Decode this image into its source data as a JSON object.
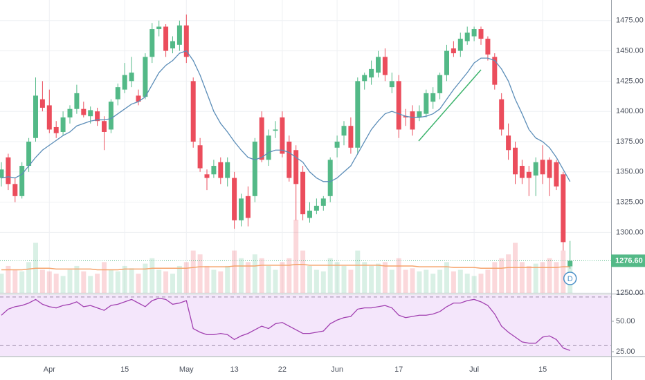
{
  "chart_data": {
    "type": "candlestick",
    "categories": [
      null,
      null,
      null,
      null,
      null,
      null,
      null,
      "Apr",
      null,
      null,
      null,
      null,
      null,
      null,
      null,
      null,
      null,
      null,
      "15",
      null,
      null,
      null,
      null,
      null,
      null,
      null,
      null,
      "May",
      null,
      null,
      null,
      null,
      null,
      null,
      "13",
      null,
      null,
      null,
      null,
      null,
      null,
      "22",
      null,
      null,
      null,
      null,
      null,
      null,
      null,
      "Jun",
      null,
      null,
      null,
      null,
      null,
      null,
      null,
      null,
      "17",
      null,
      null,
      null,
      null,
      null,
      null,
      null,
      null,
      null,
      null,
      "Jul",
      null,
      null,
      null,
      null,
      null,
      null,
      null,
      null,
      null,
      "15",
      null,
      null,
      null,
      null
    ],
    "ohlc": [
      [
        1345,
        1358,
        1338,
        1352
      ],
      [
        1362,
        1365,
        1335,
        1340
      ],
      [
        1340,
        1345,
        1325,
        1330
      ],
      [
        1330,
        1358,
        1328,
        1355
      ],
      [
        1355,
        1378,
        1350,
        1375
      ],
      [
        1378,
        1428,
        1375,
        1413
      ],
      [
        1410,
        1425,
        1400,
        1403
      ],
      [
        1405,
        1418,
        1382,
        1385
      ],
      [
        1387,
        1392,
        1378,
        1382
      ],
      [
        1383,
        1400,
        1380,
        1395
      ],
      [
        1395,
        1405,
        1390,
        1402
      ],
      [
        1402,
        1422,
        1398,
        1415
      ],
      [
        1402,
        1408,
        1395,
        1397
      ],
      [
        1396,
        1404,
        1390,
        1401
      ],
      [
        1400,
        1403,
        1388,
        1392
      ],
      [
        1392,
        1396,
        1368,
        1383
      ],
      [
        1385,
        1410,
        1382,
        1408
      ],
      [
        1410,
        1423,
        1405,
        1420
      ],
      [
        1418,
        1440,
        1415,
        1430
      ],
      [
        1425,
        1445,
        1420,
        1432
      ],
      [
        1413,
        1418,
        1405,
        1408
      ],
      [
        1412,
        1448,
        1410,
        1445
      ],
      [
        1445,
        1473,
        1440,
        1468
      ],
      [
        1468,
        1475,
        1462,
        1470
      ],
      [
        1470,
        1472,
        1445,
        1450
      ],
      [
        1452,
        1462,
        1448,
        1458
      ],
      [
        1455,
        1475,
        1450,
        1471
      ],
      [
        1471,
        1480,
        1440,
        1445
      ],
      [
        1425,
        1428,
        1370,
        1375
      ],
      [
        1372,
        1378,
        1350,
        1353
      ],
      [
        1348,
        1352,
        1335,
        1345
      ],
      [
        1348,
        1360,
        1345,
        1355
      ],
      [
        1358,
        1362,
        1340,
        1345
      ],
      [
        1345,
        1362,
        1338,
        1358
      ],
      [
        1345,
        1350,
        1303,
        1310
      ],
      [
        1310,
        1332,
        1305,
        1328
      ],
      [
        1330,
        1338,
        1305,
        1312
      ],
      [
        1330,
        1378,
        1325,
        1375
      ],
      [
        1395,
        1400,
        1358,
        1360
      ],
      [
        1360,
        1385,
        1355,
        1380
      ],
      [
        1384,
        1392,
        1378,
        1385
      ],
      [
        1395,
        1400,
        1362,
        1365
      ],
      [
        1375,
        1380,
        1342,
        1345
      ],
      [
        1368,
        1372,
        1310,
        1340
      ],
      [
        1350,
        1355,
        1310,
        1315
      ],
      [
        1312,
        1325,
        1308,
        1318
      ],
      [
        1318,
        1328,
        1315,
        1322
      ],
      [
        1322,
        1330,
        1318,
        1328
      ],
      [
        1330,
        1362,
        1325,
        1360
      ],
      [
        1370,
        1380,
        1362,
        1375
      ],
      [
        1380,
        1392,
        1372,
        1388
      ],
      [
        1388,
        1395,
        1365,
        1370
      ],
      [
        1370,
        1428,
        1365,
        1425
      ],
      [
        1425,
        1432,
        1418,
        1430
      ],
      [
        1428,
        1442,
        1422,
        1435
      ],
      [
        1432,
        1450,
        1428,
        1445
      ],
      [
        1445,
        1452,
        1425,
        1430
      ],
      [
        1420,
        1432,
        1415,
        1425
      ],
      [
        1425,
        1430,
        1378,
        1385
      ],
      [
        1396,
        1402,
        1388,
        1395
      ],
      [
        1400,
        1405,
        1380,
        1385
      ],
      [
        1395,
        1405,
        1392,
        1400
      ],
      [
        1398,
        1418,
        1395,
        1415
      ],
      [
        1408,
        1420,
        1402,
        1415
      ],
      [
        1415,
        1432,
        1410,
        1430
      ],
      [
        1430,
        1455,
        1425,
        1450
      ],
      [
        1452,
        1458,
        1445,
        1448
      ],
      [
        1450,
        1465,
        1445,
        1460
      ],
      [
        1458,
        1470,
        1455,
        1465
      ],
      [
        1462,
        1470,
        1458,
        1468
      ],
      [
        1468,
        1470,
        1455,
        1460
      ],
      [
        1460,
        1462,
        1442,
        1447
      ],
      [
        1445,
        1448,
        1418,
        1422
      ],
      [
        1410,
        1415,
        1380,
        1385
      ],
      [
        1380,
        1390,
        1360,
        1368
      ],
      [
        1370,
        1375,
        1340,
        1348
      ],
      [
        1355,
        1360,
        1340,
        1345
      ],
      [
        1350,
        1355,
        1330,
        1345
      ],
      [
        1347,
        1362,
        1330,
        1358
      ],
      [
        1360,
        1372,
        1340,
        1348
      ],
      [
        1360,
        1362,
        1330,
        1345
      ],
      [
        1358,
        1360,
        1335,
        1338
      ],
      [
        1348,
        1350,
        1285,
        1292
      ],
      [
        1272,
        1293,
        1270,
        1276.6
      ]
    ],
    "ma": [
      1345,
      1346,
      1345,
      1348,
      1355,
      1362,
      1368,
      1372,
      1376,
      1380,
      1383,
      1388,
      1390,
      1392,
      1393,
      1393,
      1394,
      1398,
      1402,
      1406,
      1408,
      1412,
      1422,
      1432,
      1438,
      1442,
      1448,
      1450,
      1442,
      1430,
      1415,
      1400,
      1390,
      1383,
      1375,
      1368,
      1362,
      1360,
      1362,
      1366,
      1368,
      1368,
      1366,
      1362,
      1358,
      1350,
      1345,
      1342,
      1342,
      1345,
      1350,
      1355,
      1365,
      1375,
      1385,
      1392,
      1398,
      1400,
      1398,
      1396,
      1395,
      1395,
      1396,
      1398,
      1402,
      1410,
      1418,
      1425,
      1432,
      1440,
      1444,
      1444,
      1442,
      1435,
      1425,
      1410,
      1398,
      1385,
      1378,
      1375,
      1370,
      1362,
      1352,
      1342
    ],
    "volume": [
      25,
      35,
      30,
      28,
      40,
      65,
      30,
      28,
      25,
      22,
      30,
      35,
      28,
      22,
      25,
      40,
      30,
      28,
      35,
      32,
      25,
      38,
      45,
      30,
      28,
      25,
      35,
      40,
      55,
      50,
      35,
      30,
      28,
      35,
      55,
      45,
      40,
      50,
      45,
      35,
      30,
      40,
      45,
      95,
      55,
      35,
      30,
      28,
      45,
      40,
      35,
      30,
      55,
      40,
      35,
      38,
      40,
      30,
      45,
      30,
      32,
      28,
      30,
      25,
      30,
      40,
      28,
      30,
      25,
      22,
      25,
      30,
      40,
      45,
      50,
      65,
      40,
      35,
      38,
      40,
      45,
      40,
      55,
      40
    ],
    "volume_ma": [
      30,
      30,
      30,
      30,
      31,
      32,
      32,
      32,
      31,
      31,
      31,
      31,
      31,
      31,
      30,
      30,
      30,
      30,
      31,
      31,
      31,
      31,
      32,
      32,
      32,
      32,
      32,
      32,
      33,
      34,
      34,
      34,
      34,
      34,
      35,
      35,
      35,
      35,
      36,
      36,
      36,
      36,
      36,
      37,
      37,
      36,
      36,
      36,
      36,
      36,
      36,
      36,
      36,
      36,
      36,
      36,
      35,
      35,
      35,
      35,
      35,
      34,
      34,
      34,
      34,
      34,
      33,
      33,
      33,
      33,
      32,
      32,
      32,
      32,
      33,
      33,
      33,
      33,
      33,
      33,
      33,
      33,
      34,
      34
    ],
    "rsi": [
      55,
      60,
      62,
      63,
      65,
      68,
      64,
      62,
      61,
      63,
      64,
      66,
      62,
      63,
      61,
      59,
      63,
      64,
      66,
      68,
      65,
      62,
      67,
      69,
      68,
      64,
      65,
      67,
      44,
      41,
      39,
      39,
      40,
      39,
      35,
      38,
      40,
      43,
      46,
      44,
      48,
      49,
      46,
      43,
      40,
      40,
      41,
      42,
      48,
      51,
      53,
      54,
      60,
      61,
      61,
      62,
      63,
      61,
      55,
      53,
      54,
      55,
      55,
      56,
      58,
      62,
      65,
      65,
      67,
      68,
      66,
      63,
      56,
      46,
      41,
      37,
      33,
      32,
      32,
      37,
      38,
      35,
      28,
      26
    ],
    "ylim": [
      1250,
      1492
    ],
    "yticks": [
      {
        "value": 1475,
        "label": "1475.00"
      },
      {
        "value": 1450,
        "label": "1450.00"
      },
      {
        "value": 1425,
        "label": "1425.00"
      },
      {
        "value": 1400,
        "label": "1400.00"
      },
      {
        "value": 1375,
        "label": "1375.00"
      },
      {
        "value": 1350,
        "label": "1350.00"
      },
      {
        "value": 1325,
        "label": "1325.00"
      },
      {
        "value": 1300,
        "label": "1300.00"
      },
      {
        "value": 1250,
        "label": "1250.00"
      }
    ],
    "rsi_ylim": [
      21.6,
      71.6
    ],
    "rsi_yticks": [
      {
        "value": 50,
        "label": "50.00"
      },
      {
        "value": 25,
        "label": "25.00"
      }
    ],
    "rsi_levels": [
      70,
      30
    ],
    "last_price": {
      "value": 1276.6,
      "label": "1276.60"
    },
    "marker_label": "D",
    "up_color": "#53b987",
    "down_color": "#eb4d5c",
    "ma_color": "#5b8db8",
    "volume_ma_color": "#f5a36b",
    "rsi_color": "#a13fb0",
    "grid": true
  }
}
